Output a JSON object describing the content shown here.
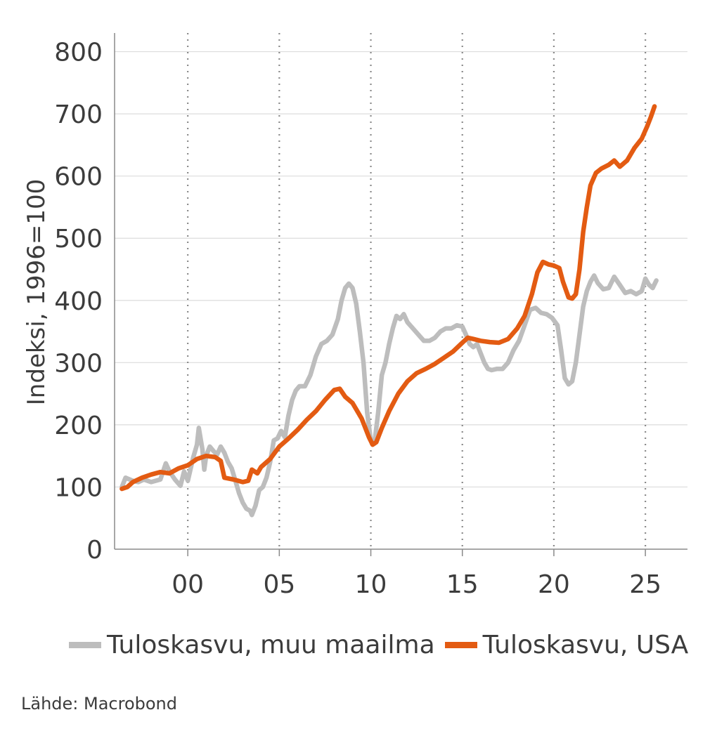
{
  "chart_data": {
    "type": "line",
    "ylabel": "Indeksi, 1996=100",
    "ylim": [
      0,
      830
    ],
    "yticks": [
      0,
      100,
      200,
      300,
      400,
      500,
      600,
      700,
      800
    ],
    "ytick_labels": [
      "0",
      "100",
      "200",
      "300",
      "400",
      "500",
      "600",
      "700",
      "800"
    ],
    "xlim": [
      1996.0,
      2027.3
    ],
    "xticks": [
      2000,
      2005,
      2010,
      2015,
      2020,
      2025
    ],
    "xtick_labels": [
      "00",
      "05",
      "10",
      "15",
      "20",
      "25"
    ],
    "vertical_dotted_lines": [
      2000,
      2005,
      2010,
      2015,
      2020,
      2025
    ],
    "grid": "horizontal",
    "legend_position": "bottom",
    "series": [
      {
        "name": "Tuloskasvu, muu maailma",
        "color": "#bdbdbd",
        "points": [
          [
            1996.4,
            100
          ],
          [
            1996.6,
            115
          ],
          [
            1997.0,
            110
          ],
          [
            1997.3,
            108
          ],
          [
            1997.6,
            112
          ],
          [
            1998.0,
            108
          ],
          [
            1998.5,
            112
          ],
          [
            1998.8,
            138
          ],
          [
            1999.0,
            125
          ],
          [
            1999.3,
            112
          ],
          [
            1999.6,
            102
          ],
          [
            1999.8,
            125
          ],
          [
            2000.0,
            110
          ],
          [
            2000.3,
            148
          ],
          [
            2000.5,
            168
          ],
          [
            2000.6,
            195
          ],
          [
            2000.8,
            160
          ],
          [
            2000.9,
            128
          ],
          [
            2001.0,
            150
          ],
          [
            2001.2,
            165
          ],
          [
            2001.4,
            158
          ],
          [
            2001.6,
            152
          ],
          [
            2001.8,
            165
          ],
          [
            2002.0,
            155
          ],
          [
            2002.2,
            140
          ],
          [
            2002.4,
            130
          ],
          [
            2002.6,
            110
          ],
          [
            2002.8,
            90
          ],
          [
            2003.0,
            75
          ],
          [
            2003.2,
            65
          ],
          [
            2003.4,
            62
          ],
          [
            2003.5,
            55
          ],
          [
            2003.7,
            70
          ],
          [
            2003.9,
            95
          ],
          [
            2004.1,
            100
          ],
          [
            2004.3,
            115
          ],
          [
            2004.5,
            140
          ],
          [
            2004.7,
            175
          ],
          [
            2004.9,
            178
          ],
          [
            2005.1,
            190
          ],
          [
            2005.3,
            180
          ],
          [
            2005.5,
            215
          ],
          [
            2005.7,
            240
          ],
          [
            2005.9,
            255
          ],
          [
            2006.1,
            262
          ],
          [
            2006.4,
            262
          ],
          [
            2006.7,
            280
          ],
          [
            2007.0,
            310
          ],
          [
            2007.3,
            330
          ],
          [
            2007.6,
            335
          ],
          [
            2007.9,
            345
          ],
          [
            2008.2,
            370
          ],
          [
            2008.4,
            400
          ],
          [
            2008.6,
            420
          ],
          [
            2008.8,
            427
          ],
          [
            2009.0,
            420
          ],
          [
            2009.2,
            395
          ],
          [
            2009.4,
            350
          ],
          [
            2009.6,
            300
          ],
          [
            2009.8,
            220
          ],
          [
            2010.0,
            175
          ],
          [
            2010.2,
            170
          ],
          [
            2010.4,
            220
          ],
          [
            2010.6,
            280
          ],
          [
            2010.8,
            300
          ],
          [
            2011.0,
            330
          ],
          [
            2011.2,
            355
          ],
          [
            2011.4,
            375
          ],
          [
            2011.6,
            370
          ],
          [
            2011.8,
            378
          ],
          [
            2012.0,
            365
          ],
          [
            2012.3,
            355
          ],
          [
            2012.6,
            345
          ],
          [
            2012.9,
            335
          ],
          [
            2013.2,
            335
          ],
          [
            2013.5,
            340
          ],
          [
            2013.8,
            350
          ],
          [
            2014.1,
            355
          ],
          [
            2014.4,
            355
          ],
          [
            2014.7,
            360
          ],
          [
            2015.0,
            358
          ],
          [
            2015.2,
            345
          ],
          [
            2015.4,
            330
          ],
          [
            2015.6,
            325
          ],
          [
            2015.8,
            330
          ],
          [
            2016.0,
            315
          ],
          [
            2016.2,
            300
          ],
          [
            2016.4,
            290
          ],
          [
            2016.6,
            288
          ],
          [
            2016.9,
            290
          ],
          [
            2017.2,
            290
          ],
          [
            2017.5,
            300
          ],
          [
            2017.8,
            320
          ],
          [
            2018.1,
            335
          ],
          [
            2018.4,
            360
          ],
          [
            2018.7,
            385
          ],
          [
            2019.0,
            388
          ],
          [
            2019.3,
            380
          ],
          [
            2019.6,
            378
          ],
          [
            2019.9,
            372
          ],
          [
            2020.2,
            360
          ],
          [
            2020.4,
            320
          ],
          [
            2020.6,
            275
          ],
          [
            2020.8,
            265
          ],
          [
            2021.0,
            270
          ],
          [
            2021.2,
            300
          ],
          [
            2021.4,
            345
          ],
          [
            2021.6,
            390
          ],
          [
            2021.8,
            415
          ],
          [
            2022.0,
            430
          ],
          [
            2022.2,
            440
          ],
          [
            2022.4,
            428
          ],
          [
            2022.7,
            418
          ],
          [
            2023.0,
            420
          ],
          [
            2023.3,
            438
          ],
          [
            2023.6,
            425
          ],
          [
            2023.9,
            412
          ],
          [
            2024.2,
            415
          ],
          [
            2024.5,
            410
          ],
          [
            2024.8,
            415
          ],
          [
            2025.0,
            435
          ],
          [
            2025.2,
            425
          ],
          [
            2025.4,
            420
          ],
          [
            2025.6,
            432
          ]
        ]
      },
      {
        "name": "Tuloskasvu, USA",
        "color": "#e35b12",
        "points": [
          [
            1996.4,
            97
          ],
          [
            1996.7,
            100
          ],
          [
            1997.0,
            108
          ],
          [
            1997.5,
            115
          ],
          [
            1998.0,
            120
          ],
          [
            1998.5,
            124
          ],
          [
            1999.0,
            122
          ],
          [
            1999.5,
            130
          ],
          [
            2000.0,
            135
          ],
          [
            2000.5,
            145
          ],
          [
            2001.0,
            150
          ],
          [
            2001.5,
            148
          ],
          [
            2001.8,
            142
          ],
          [
            2002.0,
            115
          ],
          [
            2002.5,
            112
          ],
          [
            2003.0,
            108
          ],
          [
            2003.3,
            110
          ],
          [
            2003.5,
            128
          ],
          [
            2003.8,
            122
          ],
          [
            2004.0,
            132
          ],
          [
            2004.5,
            145
          ],
          [
            2005.0,
            165
          ],
          [
            2005.5,
            178
          ],
          [
            2006.0,
            192
          ],
          [
            2006.5,
            208
          ],
          [
            2007.0,
            222
          ],
          [
            2007.5,
            240
          ],
          [
            2008.0,
            256
          ],
          [
            2008.3,
            258
          ],
          [
            2008.6,
            245
          ],
          [
            2009.0,
            235
          ],
          [
            2009.5,
            210
          ],
          [
            2009.9,
            180
          ],
          [
            2010.1,
            168
          ],
          [
            2010.3,
            172
          ],
          [
            2010.6,
            195
          ],
          [
            2011.0,
            222
          ],
          [
            2011.5,
            250
          ],
          [
            2012.0,
            270
          ],
          [
            2012.5,
            283
          ],
          [
            2013.0,
            290
          ],
          [
            2013.5,
            298
          ],
          [
            2014.0,
            308
          ],
          [
            2014.5,
            318
          ],
          [
            2015.0,
            332
          ],
          [
            2015.3,
            340
          ],
          [
            2015.6,
            338
          ],
          [
            2016.0,
            335
          ],
          [
            2016.5,
            333
          ],
          [
            2017.0,
            332
          ],
          [
            2017.5,
            338
          ],
          [
            2018.0,
            355
          ],
          [
            2018.4,
            375
          ],
          [
            2018.8,
            410
          ],
          [
            2019.1,
            445
          ],
          [
            2019.4,
            462
          ],
          [
            2019.7,
            458
          ],
          [
            2020.0,
            456
          ],
          [
            2020.3,
            452
          ],
          [
            2020.5,
            430
          ],
          [
            2020.8,
            405
          ],
          [
            2021.0,
            403
          ],
          [
            2021.2,
            410
          ],
          [
            2021.4,
            450
          ],
          [
            2021.6,
            510
          ],
          [
            2021.8,
            550
          ],
          [
            2022.0,
            585
          ],
          [
            2022.3,
            605
          ],
          [
            2022.6,
            612
          ],
          [
            2023.0,
            618
          ],
          [
            2023.3,
            625
          ],
          [
            2023.6,
            615
          ],
          [
            2024.0,
            625
          ],
          [
            2024.4,
            645
          ],
          [
            2024.8,
            660
          ],
          [
            2025.1,
            680
          ],
          [
            2025.3,
            695
          ],
          [
            2025.5,
            712
          ]
        ]
      }
    ]
  },
  "legend": {
    "items": [
      {
        "label": "Tuloskasvu, muu maailma",
        "color": "#bdbdbd"
      },
      {
        "label": "Tuloskasvu, USA",
        "color": "#e35b12"
      }
    ]
  },
  "source": "Lähde: Macrobond"
}
